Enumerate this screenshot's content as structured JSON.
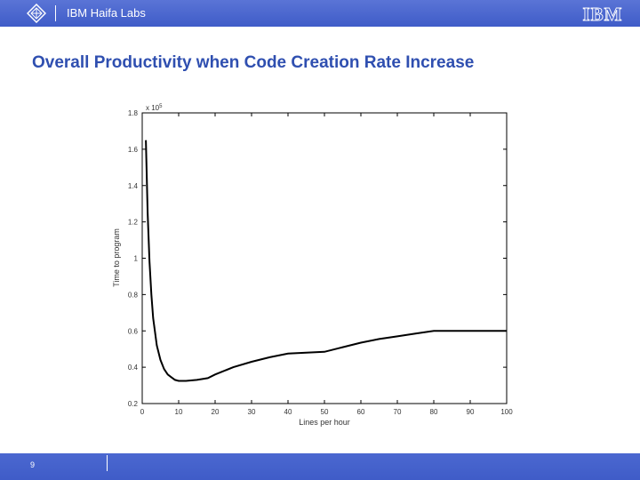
{
  "header": {
    "lab_name": "IBM Haifa Labs",
    "brand": "IBM",
    "bar_color": "#4a66d0"
  },
  "slide": {
    "title": "Overall Productivity when Code Creation Rate Increase",
    "title_color": "#2f4fb0",
    "page_number": "9"
  },
  "chart_data": {
    "type": "line",
    "title": "",
    "xlabel": "Lines per hour",
    "ylabel": "Time to program",
    "y_multiplier_label": "x 10",
    "y_multiplier_exponent": "5",
    "xlim": [
      0,
      100
    ],
    "ylim": [
      0.2,
      1.8
    ],
    "x_ticks": [
      0,
      10,
      20,
      30,
      40,
      50,
      60,
      70,
      80,
      90,
      100
    ],
    "y_ticks": [
      0.2,
      0.4,
      0.6,
      0.8,
      1,
      1.2,
      1.4,
      1.6,
      1.8
    ],
    "grid": false,
    "series": [
      {
        "x": [
          1,
          1.5,
          2,
          2.5,
          3,
          4,
          5,
          6,
          7,
          8,
          9,
          10,
          12,
          15,
          18,
          20,
          25,
          30,
          35,
          40,
          45,
          50,
          55,
          60,
          65,
          70,
          75,
          80,
          85,
          90,
          95,
          100
        ],
        "y": [
          1.65,
          1.25,
          0.98,
          0.8,
          0.67,
          0.52,
          0.44,
          0.39,
          0.36,
          0.345,
          0.33,
          0.325,
          0.325,
          0.33,
          0.34,
          0.36,
          0.4,
          0.43,
          0.455,
          0.475,
          0.48,
          0.485,
          0.51,
          0.535,
          0.555,
          0.57,
          0.585,
          0.6,
          0.6,
          0.6,
          0.6,
          0.6
        ],
        "color": "#000000"
      }
    ]
  }
}
